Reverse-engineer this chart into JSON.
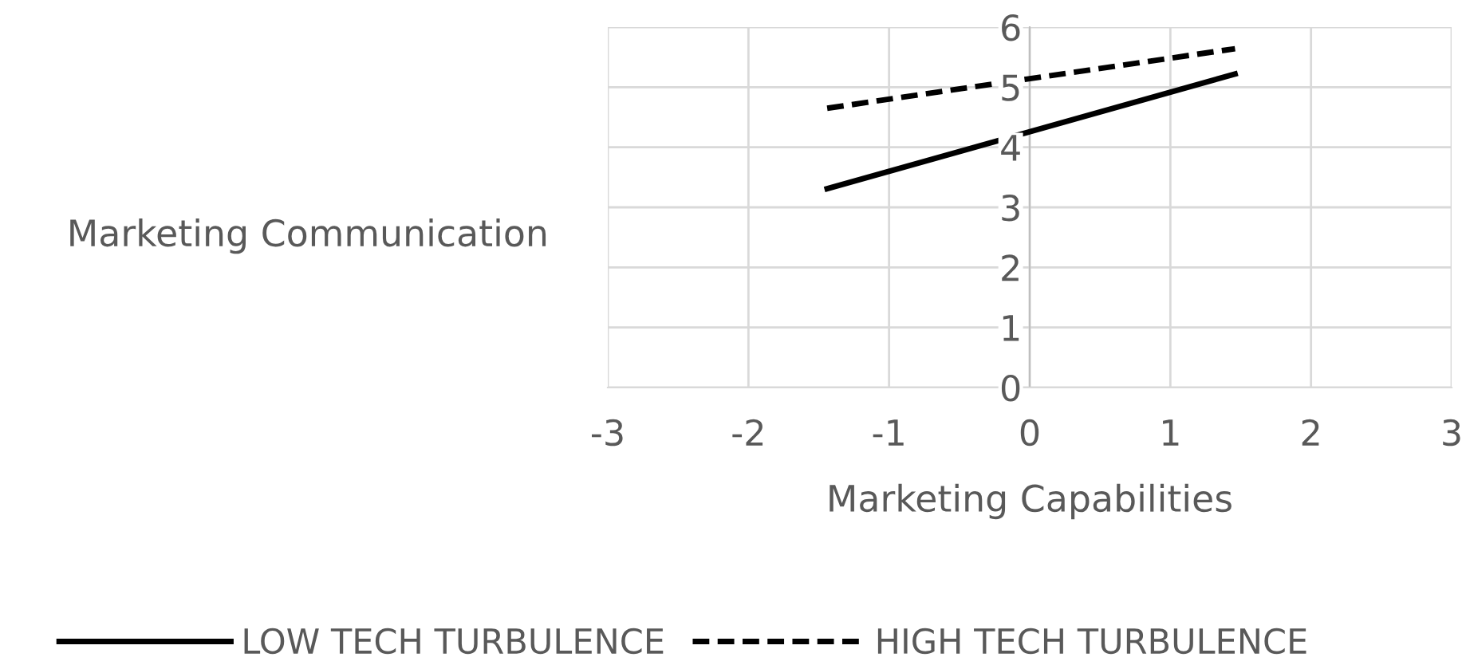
{
  "chart_data": {
    "type": "line",
    "xlabel": "Marketing Capabilities",
    "ylabel": "Marketing Communication",
    "x": [
      -1.44,
      1.46
    ],
    "series": [
      {
        "name": "LOW TECH TURBULENCE",
        "color": "#000000",
        "values": [
          3.31,
          5.22
        ],
        "line_style": "solid"
      },
      {
        "name": "HIGH TECH TURBULENCE",
        "color": "#000000",
        "values": [
          4.65,
          5.64
        ],
        "line_style": "dashed"
      }
    ],
    "xlim": [
      -3,
      3
    ],
    "xticks": [
      -3,
      -2,
      -1,
      0,
      1,
      2,
      3
    ],
    "ylim": [
      0,
      6
    ],
    "yticks": [
      0,
      1,
      2,
      3,
      4,
      5,
      6
    ],
    "grid": true,
    "legend": "bottom",
    "marker": "none"
  }
}
